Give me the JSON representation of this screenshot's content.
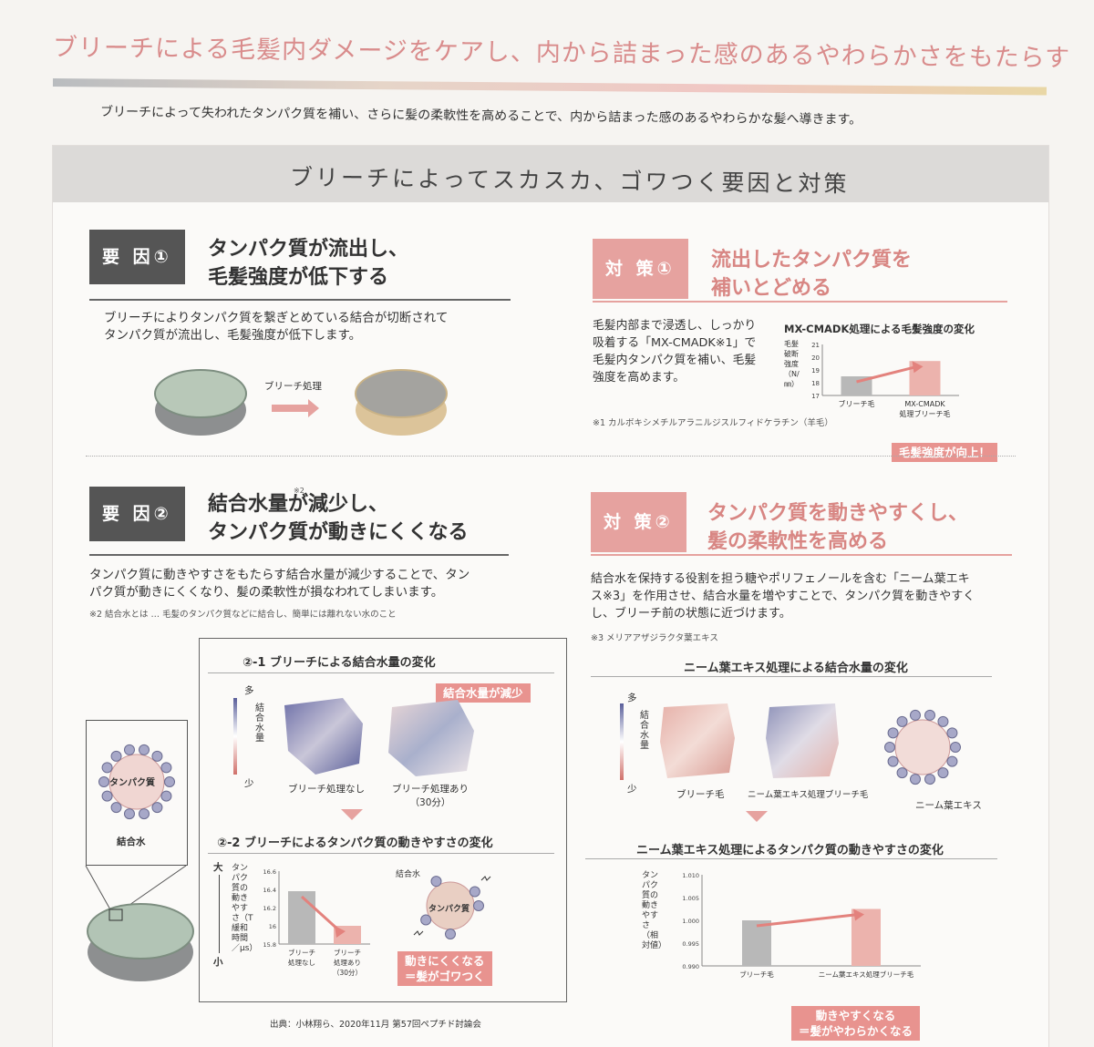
{
  "header": {
    "headline": "ブリーチによる毛髪内ダメージをケアし、内から詰まった感のあるやわらかさをもたらす",
    "intro": "ブリーチによって失われたタンパク質を補い、さらに髪の柔軟性を高めることで、内から詰まった感のあるやわらかな髪へ導きます。"
  },
  "section_title": "ブリーチによってスカスカ、ゴワつく要因と対策",
  "cause1": {
    "tag": "要 因①",
    "title": "タンパク質が流出し、\n毛髪強度が低下する",
    "body": "ブリーチによりタンパク質を繋ぎとめている結合が切断されて\nタンパク質が流出し、毛髪強度が低下します。",
    "arrow_label": "ブリーチ処理"
  },
  "measure1": {
    "tag": "対 策①",
    "title": "流出したタンパク質を\n補いとどめる",
    "body": "毛髪内部まで浸透し、しっかり\n吸着する「MX-CMADK※1」で\n毛髪内タンパク質を補い、毛髪\n強度を高めます。",
    "footnote": "※1 カルボキシメチルアラニルジスルフィドケラチン（羊毛）",
    "chart_title": "MX-CMADK処理による毛髪強度の変化",
    "ylabel": "毛髪破断強度（N/㎜）",
    "badge": "毛髪強度が向上！"
  },
  "cause2": {
    "tag": "要 因②",
    "title": "結合水量が減少し、\nタンパク質が動きにくくなる",
    "title_sup": "※2",
    "body": "タンパク質に動きやすさをもたらす結合水量が減少することで、タン\nパク質が動きにくくなり、髪の柔軟性が損なわれてしまいます。",
    "footnote": "※2 結合水とは … 毛髪のタンパク質などに結合し、簡単には離れない水のこと",
    "inset_protein": "タンパク質",
    "inset_water": "結合水",
    "fig1_title": "②-1  ブリーチによる結合水量の変化",
    "fig1_badge": "結合水量が減少",
    "scale_top": "多",
    "scale_bottom": "少",
    "scale_label": "結合水量",
    "img_a": "ブリーチ処理なし",
    "img_b": "ブリーチ処理あり\n（30分）",
    "fig2_title": "②-2 ブリーチによるタンパク質の動きやすさの変化",
    "fig2_ylabel": "タンパク質の動きやすさ（T緩和時間／μs）",
    "fig2_big": "大",
    "fig2_small": "小",
    "mol_water": "結合水",
    "mol_protein": "タンパク質",
    "fig2_badge": "動きにくくなる\n＝髪がゴワつく",
    "source": "出典：小林翔ら、2020年11月 第57回ペプチド討論会"
  },
  "measure2": {
    "tag": "対 策②",
    "title": "タンパク質を動きやすくし、\n髪の柔軟性を高める",
    "body": "結合水を保持する役割を担う糖やポリフェノールを含む「ニーム葉エキ\nス※3」を作用させ、結合水量を増やすことで、タンパク質を動きやすく\nし、ブリーチ前の状態に近づけます。",
    "footnote": "※3 メリアアザジラクタ葉エキス",
    "fig1_title": "ニーム葉エキス処理による結合水量の変化",
    "scale_top": "多",
    "scale_bottom": "少",
    "scale_label": "結合水量",
    "img_a": "ブリーチ毛",
    "img_b": "ニーム葉エキス処理ブリーチ毛",
    "img_c": "ニーム葉エキス",
    "fig2_title": "ニーム葉エキス処理によるタンパク質の動きやすさの変化",
    "fig2_ylabel": "タンパク質の動きやすさ（相対値）",
    "fig2_badge": "動きやすくなる\n＝髪がやわらかくなる"
  },
  "chart_data": [
    {
      "type": "bar",
      "title": "MX-CMADK処理による毛髪強度の変化",
      "categories": [
        "ブリーチ毛",
        "MX-CMADK\n処理ブリーチ毛"
      ],
      "values": [
        18.5,
        19.7
      ],
      "ylim": [
        17,
        21
      ],
      "yticks": [
        17,
        18,
        19,
        20,
        21
      ],
      "ylabel": "毛髪破断強度（N/㎜）"
    },
    {
      "type": "bar",
      "title": "②-2 ブリーチによるタンパク質の動きやすさの変化",
      "categories": [
        "ブリーチ\n処理なし",
        "ブリーチ\n処理あり\n（30分）"
      ],
      "values": [
        16.38,
        16.0
      ],
      "ylim": [
        15.8,
        16.6
      ],
      "yticks": [
        15.8,
        16.0,
        16.2,
        16.4,
        16.6
      ],
      "ylabel": "タンパク質の動きやすさ（T緩和時間／μs）"
    },
    {
      "type": "bar",
      "title": "ニーム葉エキス処理によるタンパク質の動きやすさの変化",
      "categories": [
        "ブリーチ毛",
        "ニーム葉エキス処理ブリーチ毛"
      ],
      "values": [
        1.0,
        1.0025
      ],
      "ylim": [
        0.99,
        1.01
      ],
      "yticks": [
        "0.990",
        "0.995",
        "1.000",
        "1.005",
        "1.010"
      ],
      "ylabel": "タンパク質の動きやすさ（相対値）"
    }
  ],
  "colors": {
    "accent_pink": "#e6a29f",
    "dark_tag": "#555555",
    "bar_gray": "#b8b8b8",
    "bar_pink": "#ecb3ad"
  }
}
